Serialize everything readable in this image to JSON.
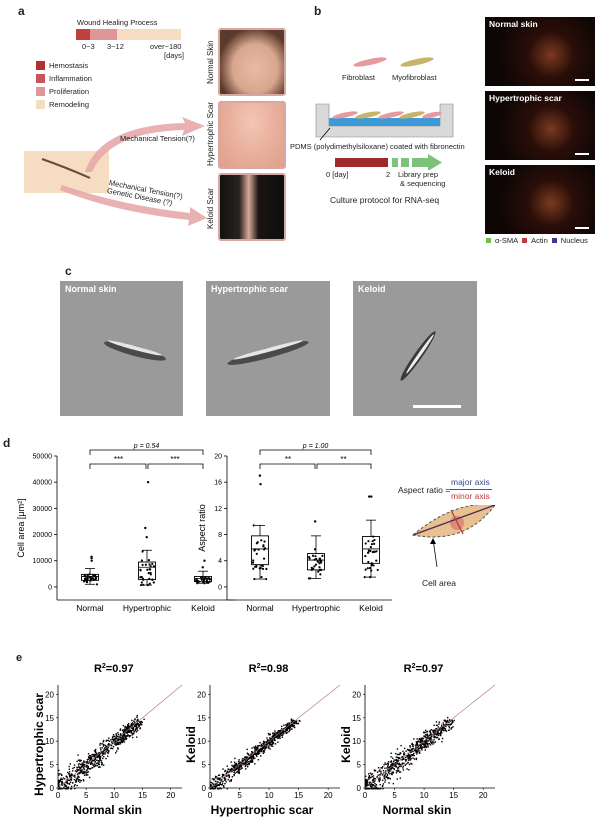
{
  "panel_a": {
    "label": "a",
    "timeline_title": "Wound Healing Process",
    "timeline_ticks": [
      "0~3",
      "3~12",
      "over~180",
      "[days]"
    ],
    "legend": [
      {
        "label": "Hemostasis",
        "color": "#b0322c"
      },
      {
        "label": "Inflammation",
        "color": "#c9545a"
      },
      {
        "label": "Proliferation",
        "color": "#df9698"
      },
      {
        "label": "Remodeling",
        "color": "#f6dcc0"
      }
    ],
    "arrow_upper": "Mechanical Tension(?)",
    "arrow_lower_1": "Mechanical Tension(?)",
    "arrow_lower_2": "Genetic Disease (?)",
    "photos": [
      "Normal Skin",
      "Hypertrophic Scar",
      "Keloid Scar"
    ]
  },
  "panel_b": {
    "label": "b",
    "cells": [
      "Fibroblast",
      "Myofibroblast"
    ],
    "pdms": "PDMS (polydimethylsiloxane) coated with fibronectin",
    "day0": "0 [day]",
    "day2": "2",
    "library": "Library prep",
    "sequencing": "& sequencing",
    "protocol": "Culture protocol for RNA-seq",
    "images": [
      "Normal skin",
      "Hypertrophic scar",
      "Keloid"
    ],
    "stain_legend": [
      {
        "label": "α-SMA",
        "color": "#6fbf4a"
      },
      {
        "label": "Actin",
        "color": "#c0393b"
      },
      {
        "label": "Nucleus",
        "color": "#3a3a8c"
      }
    ]
  },
  "panel_c": {
    "label": "c",
    "images": [
      "Normal skin",
      "Hypertrophic scar",
      "Keloid"
    ]
  },
  "panel_d": {
    "label": "d",
    "aspect_label": "Aspect ratio =",
    "major": "major axis",
    "minor": "minor axis",
    "cell_area": "Cell area",
    "major_color": "#3a4a8c",
    "minor_color": "#c0393b"
  },
  "panel_e": {
    "label": "e"
  },
  "chart_data": [
    {
      "type": "box",
      "ylabel": "Cell area [μm²]",
      "ylim": [
        -5000,
        50000
      ],
      "yticks": [
        "0",
        "10000",
        "20000",
        "30000",
        "40000",
        "50000"
      ],
      "categories": [
        "Normal",
        "Hypertrophic",
        "Keloid"
      ],
      "boxes": [
        {
          "q1": 2500,
          "median": 4000,
          "q3": 4800,
          "whisker_low": 1000,
          "whisker_high": 7000,
          "outliers": [
            10000,
            11000,
            11500
          ]
        },
        {
          "q1": 2800,
          "median": 7500,
          "q3": 9500,
          "whisker_low": 700,
          "whisker_high": 14000,
          "outliers": [
            19000,
            22500,
            40000
          ]
        },
        {
          "q1": 2000,
          "median": 3200,
          "q3": 4000,
          "whisker_low": 1400,
          "whisker_high": 6000,
          "outliers": [
            7500,
            10000
          ]
        }
      ],
      "significance": [
        {
          "from": "Normal",
          "to": "Keloid",
          "label": "p = 0.54"
        },
        {
          "from": "Normal",
          "to": "Hypertrophic",
          "label": "***"
        },
        {
          "from": "Hypertrophic",
          "to": "Keloid",
          "label": "***"
        }
      ]
    },
    {
      "type": "box",
      "ylabel": "Aspect ratio",
      "ylim": [
        -2,
        20
      ],
      "yticks": [
        "0",
        "4",
        "8",
        "12",
        "16",
        "20"
      ],
      "categories": [
        "Normal",
        "Hypertrophic",
        "Keloid"
      ],
      "boxes": [
        {
          "q1": 3.4,
          "median": 5.8,
          "q3": 7.8,
          "whisker_low": 1.2,
          "whisker_high": 9.4,
          "outliers": [
            15.7,
            17.0
          ]
        },
        {
          "q1": 2.6,
          "median": 4.1,
          "q3": 5.1,
          "whisker_low": 1.3,
          "whisker_high": 7.8,
          "outliers": [
            10.0
          ]
        },
        {
          "q1": 3.6,
          "median": 5.8,
          "q3": 7.7,
          "whisker_low": 1.5,
          "whisker_high": 10.2,
          "outliers": [
            13.8,
            13.8
          ]
        }
      ],
      "significance": [
        {
          "from": "Normal",
          "to": "Keloid",
          "label": "p = 1.00"
        },
        {
          "from": "Normal",
          "to": "Hypertrophic",
          "label": "**"
        },
        {
          "from": "Hypertrophic",
          "to": "Keloid",
          "label": "**"
        }
      ]
    },
    {
      "type": "scatter",
      "title": "R²=0.97",
      "title_base": "R",
      "title_sup": "2",
      "title_rest": "=0.97",
      "xlabel": "Normal skin",
      "ylabel": "Hypertrophic scar",
      "xlim": [
        0,
        22
      ],
      "ylim": [
        0,
        22
      ],
      "xticks": [
        "0",
        "5",
        "10",
        "15",
        "20"
      ],
      "yticks": [
        "0",
        "5",
        "10",
        "15",
        "20"
      ],
      "r2": 0.97,
      "reference_line": "y = x"
    },
    {
      "type": "scatter",
      "title": "R²=0.98",
      "title_base": "R",
      "title_sup": "2",
      "title_rest": "=0.98",
      "xlabel": "Hypertrophic scar",
      "ylabel": "Keloid",
      "xlim": [
        0,
        22
      ],
      "ylim": [
        0,
        22
      ],
      "xticks": [
        "0",
        "5",
        "10",
        "15",
        "20"
      ],
      "yticks": [
        "0",
        "5",
        "10",
        "15",
        "20"
      ],
      "r2": 0.98,
      "reference_line": "y = x"
    },
    {
      "type": "scatter",
      "title": "R²=0.97",
      "title_base": "R",
      "title_sup": "2",
      "title_rest": "=0.97",
      "xlabel": "Normal skin",
      "ylabel": "Keloid",
      "xlim": [
        0,
        22
      ],
      "ylim": [
        0,
        22
      ],
      "xticks": [
        "0",
        "5",
        "10",
        "15",
        "20"
      ],
      "yticks": [
        "0",
        "5",
        "10",
        "15",
        "20"
      ],
      "r2": 0.97,
      "reference_line": "y = x"
    }
  ]
}
